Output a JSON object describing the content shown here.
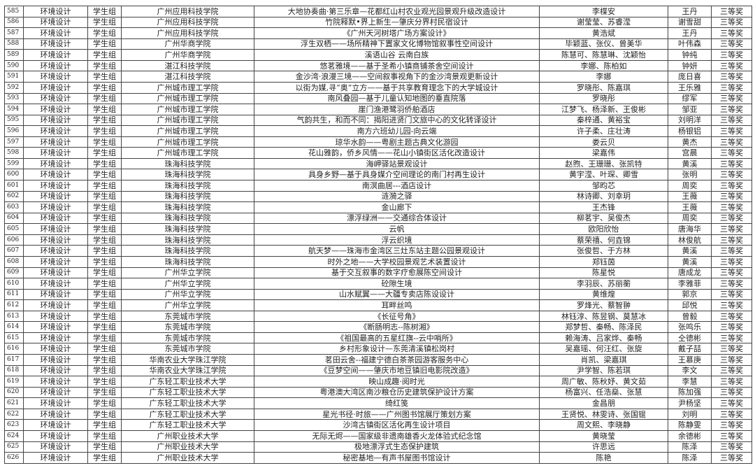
{
  "rows": [
    [
      "585",
      "环境设计",
      "学生组",
      "广州应用科技学院",
      "大地协奏曲·第三乐章—花都红山村农业观光园景观升级改造设计",
      "李楪安",
      "王丹",
      "三等奖"
    ],
    [
      "586",
      "环境设计",
      "学生组",
      "广州应用科技学院",
      "竹院释默•界上新生—肇庆分界村民宿设计",
      "谢莹莹、苏睿滢",
      "谢雪甜",
      "三等奖"
    ],
    [
      "587",
      "环境设计",
      "学生组",
      "广州应用科技学院",
      "《广州天河树塔广场方案设计》",
      "黄浩斌",
      "王丹",
      "三等奖"
    ],
    [
      "588",
      "环境设计",
      "学生组",
      "广州华商学院",
      "浮生双栖——场所精神下置家文化博物馆叙事性空间设计",
      "毕颖蓝、张仪、曾美华",
      "叶伟森",
      "三等奖"
    ],
    [
      "589",
      "环境设计",
      "学生组",
      "广州华商学院",
      "溪语山谷  云南白族",
      "陈慧可、陈慧琳、沈颖怡",
      "钟纯",
      "三等奖"
    ],
    [
      "590",
      "环境设计",
      "学生组",
      "湛江科技学院",
      "悠茗雅境——基于圣希小镇商铺茶舍空间设计",
      "李娜、陈柏如",
      "钟妍",
      "三等奖"
    ],
    [
      "591",
      "环境设计",
      "学生组",
      "湛江科技学院",
      "金沙湾·浪漫三境——空间叙事视角下的金沙湾景观更新设计",
      "李娜",
      "庞日喜",
      "三等奖"
    ],
    [
      "592",
      "环境设计",
      "学生组",
      "广州城市理工学院",
      "以街为媒,寻“奥”立方——基于共享教育理念下的大学城设计",
      "罗晓彤、陈嘉琪",
      "王乐雅",
      "三等奖"
    ],
    [
      "593",
      "环境设计",
      "学生组",
      "广州城市理工学院",
      "南风叠园—基于儿童认知地图的垂直院落",
      "罗晓彤",
      "缪军",
      "三等奖"
    ],
    [
      "594",
      "环境设计",
      "学生组",
      "广州城市理工学院",
      "崖门渔港鹭羽侨舶酒店",
      "江梦飞、杨泽新、王俊彬",
      "邹亚",
      "三等奖"
    ],
    [
      "595",
      "环境设计",
      "学生组",
      "广州城市理工学院",
      "气韵共生，和而不同：揭阳进贤门文旅中心的文化转译设计",
      "秦梓通、黄裕宝",
      "刘明洋",
      "三等奖"
    ],
    [
      "596",
      "环境设计",
      "学生组",
      "广州城市理工学院",
      "南方六班幼儿园-向云端",
      "许子柔、庄壮涛",
      "杨银铝",
      "三等奖"
    ],
    [
      "597",
      "环境设计",
      "学生组",
      "广州城市理工学院",
      "琼华水韵——粤剧主题古典文化游园",
      "娄云贝",
      "黄杰",
      "三等奖"
    ],
    [
      "598",
      "环境设计",
      "学生组",
      "广州城市理工学院",
      "花山雅韵，侨乡风情——花山小镇街区活化改造设计",
      "梁嘉伟",
      "宫晨",
      "三等奖"
    ],
    [
      "599",
      "环境设计",
      "学生组",
      "珠海科技学院",
      "海岬驿站景观设计",
      "赵煦、王珊珊、张凯特",
      "黄溪",
      "三等奖"
    ],
    [
      "600",
      "环境设计",
      "学生组",
      "珠海科技学院",
      "具身乡野—基于具身媒介空间理论的南门村再生设计",
      "黄宇滢、叶琛、卿雪",
      "张明",
      "三等奖"
    ],
    [
      "601",
      "环境设计",
      "学生组",
      "珠海科技学院",
      "南溟曲居---酒店设计",
      "邹昀芯",
      "周奕",
      "三等奖"
    ],
    [
      "602",
      "环境设计",
      "学生组",
      "珠海科技学院",
      "涟漪之驿",
      "林诗卿、刘幸玥",
      "王薇",
      "三等奖"
    ],
    [
      "603",
      "环境设计",
      "学生组",
      "珠海科技学院",
      "金山廊下",
      "王杰锋",
      "王薇",
      "三等奖"
    ],
    [
      "604",
      "环境设计",
      "学生组",
      "珠海科技学院",
      "漂浮绿洲——交通综合体设计",
      "柳茗宇、吴俊杰",
      "周奕",
      "三等奖"
    ],
    [
      "605",
      "环境设计",
      "学生组",
      "珠海科技学院",
      "云帆",
      "欧阳欣怡",
      "唐海华",
      "三等奖"
    ],
    [
      "606",
      "环境设计",
      "学生组",
      "珠海科技学院",
      "浮云织境",
      "蔡荣禧、何垚锦",
      "林俊航",
      "三等奖"
    ],
    [
      "607",
      "环境设计",
      "学生组",
      "珠海科技学院",
      "航天梦——珠海市金湾区三灶东站主题公园景观设计",
      "张俊哲、于方林",
      "黄溪",
      "三等奖"
    ],
    [
      "608",
      "环境设计",
      "学生组",
      "珠海科技学院",
      "时外之地——大学校园景观艺术装置设计",
      "郑钰茵",
      "黄溪",
      "三等奖"
    ],
    [
      "609",
      "环境设计",
      "学生组",
      "广州华立学院",
      "基于交互叙事的数字疗愈展陈空间设计",
      "陈星悦",
      "唐成龙",
      "三等奖"
    ],
    [
      "610",
      "环境设计",
      "学生组",
      "广州华立学院",
      "砼隙生境",
      "李羽辰、苏丽蘅",
      "李雅菲",
      "三等奖"
    ],
    [
      "611",
      "环境设计",
      "学生组",
      "广州华立学院",
      "山水赋翼——大疆专卖店陈设设计",
      "黄维煌",
      "郭京",
      "三等奖"
    ],
    [
      "612",
      "环境设计",
      "学生组",
      "广州华立学院",
      "耳畔丝鸣",
      "罗烽光、蔡智翀",
      "邱悦",
      "三等奖"
    ],
    [
      "613",
      "环境设计",
      "学生组",
      "东莞城市学院",
      "《长征号角》",
      "林钰淳、陈昱钢、莫慧冰",
      "曾毅",
      "三等奖"
    ],
    [
      "614",
      "环境设计",
      "学生组",
      "东莞城市学院",
      "《断肠明志--陈树湘》",
      "郑梦哲、秦畅、陈泽民",
      "张鸣乐",
      "三等奖"
    ],
    [
      "615",
      "环境设计",
      "学生组",
      "东莞城市学院",
      "《祖国最高的五星红旗--云中哨所》",
      "赖海涛、吕家烨、秦畅",
      "仝德彬",
      "三等奖"
    ],
    [
      "616",
      "环境设计",
      "学生组",
      "东莞城市学院",
      "乡村形象设计—东莞清溪镇松岗村",
      "吴嘉瑶、何汪红、张旋",
      "戴子喆",
      "三等奖"
    ],
    [
      "617",
      "环境设计",
      "学生组",
      "华南农业大学珠江学院",
      "茗田云舍--福建宁德白茶茶园游客服务中心",
      "肖凯、梁嘉琪",
      "王慕庚",
      "三等奖"
    ],
    [
      "618",
      "环境设计",
      "学生组",
      "华南农业大学珠江学院",
      "《豆梦空间——肇庆市地豆镇旧电影院改造》",
      "尹学智、陈若琪",
      "李文",
      "三等奖"
    ],
    [
      "619",
      "环境设计",
      "学生组",
      "广东轻工职业技术大学",
      "映山成趣·阅时光",
      "周广敏、陈秋妤、黄文茹",
      "李慧",
      "三等奖"
    ],
    [
      "620",
      "环境设计",
      "学生组",
      "广东轻工职业技术大学",
      "粤港澳大湾区南沙粮仓历史建筑保护设计方案",
      "杨富兴、任浩燊、张慧",
      "陈加强",
      "三等奖"
    ],
    [
      "621",
      "环境设计",
      "学生组",
      "广东轻工职业技术大学",
      "绮红笺",
      "金昌朋",
      "尹杨坚",
      "三等奖"
    ],
    [
      "622",
      "环境设计",
      "学生组",
      "广东轻工职业技术大学",
      "星光书径·时旅——广州图书馆展厅策划方案",
      "王贤悦、林雯诗、张国锟",
      "刘明",
      "三等奖"
    ],
    [
      "623",
      "环境设计",
      "学生组",
      "广东轻工职业技术大学",
      "沙湾古镇街区活化再生设计项目",
      "周文熙、李晓静",
      "陈静雯",
      "三等奖"
    ],
    [
      "624",
      "环境设计",
      "学生组",
      "广州职业技术大学",
      "无际无烬——国家级非遗南雄香火龙体验式纪念馆",
      "黄晓莹",
      "余德彬",
      "三等奖"
    ],
    [
      "625",
      "环境设计",
      "学生组",
      "广州职业技术大学",
      "极地漂浮式生态保护建筑",
      "许思远",
      "陈泽",
      "三等奖"
    ],
    [
      "626",
      "环境设计",
      "学生组",
      "广州职业技术大学",
      "秘密基地—有声书屋图书馆设计",
      "陈艳",
      "陈泽",
      "三等奖"
    ]
  ]
}
